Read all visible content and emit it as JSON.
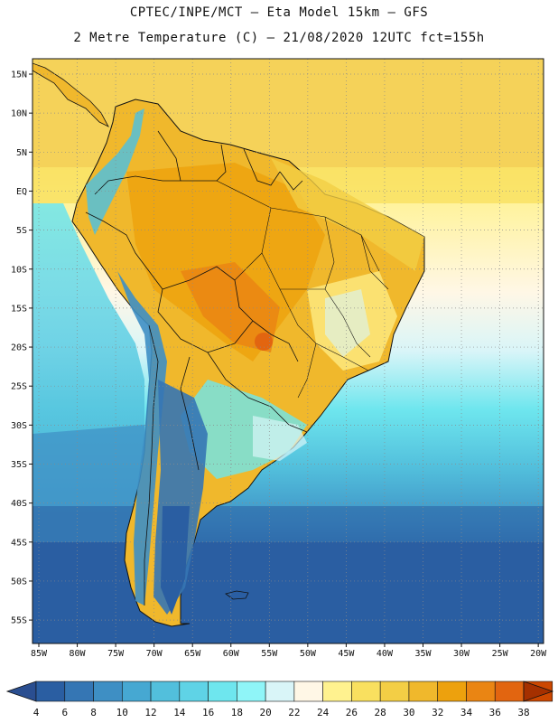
{
  "header": {
    "line1": "CPTEC/INPE/MCT –  Eta Model 15km – GFS",
    "line2": "2 Metre Temperature (C) – 21/08/2020 12UTC fct=155h"
  },
  "axes": {
    "lat_labels": [
      "15N",
      "10N",
      "5N",
      "EQ",
      "5S",
      "10S",
      "15S",
      "20S",
      "25S",
      "30S",
      "35S",
      "40S",
      "45S",
      "50S",
      "55S"
    ],
    "lon_labels": [
      "85W",
      "80W",
      "75W",
      "70W",
      "65W",
      "60W",
      "55W",
      "50W",
      "45W",
      "40W",
      "35W",
      "30W",
      "25W",
      "20W"
    ]
  },
  "colorbar": {
    "ticks": [
      "4",
      "6",
      "8",
      "10",
      "12",
      "14",
      "16",
      "18",
      "20",
      "22",
      "24",
      "26",
      "28",
      "30",
      "32",
      "34",
      "36",
      "38"
    ],
    "colors": [
      "#2a5ea2",
      "#3576b4",
      "#3e8fc4",
      "#46a8d2",
      "#52bfdc",
      "#5fd3e6",
      "#6ee6ee",
      "#8ff5f8",
      "#d9f5f8",
      "#fff7e6",
      "#fff28f",
      "#f9e05f",
      "#f3ce45",
      "#f0b82c",
      "#eda10d",
      "#ea8513",
      "#e26510",
      "#cc4700",
      "#b13100"
    ],
    "low_arrow_color": "#2a4e90",
    "high_arrow_color": "#a53000"
  }
}
